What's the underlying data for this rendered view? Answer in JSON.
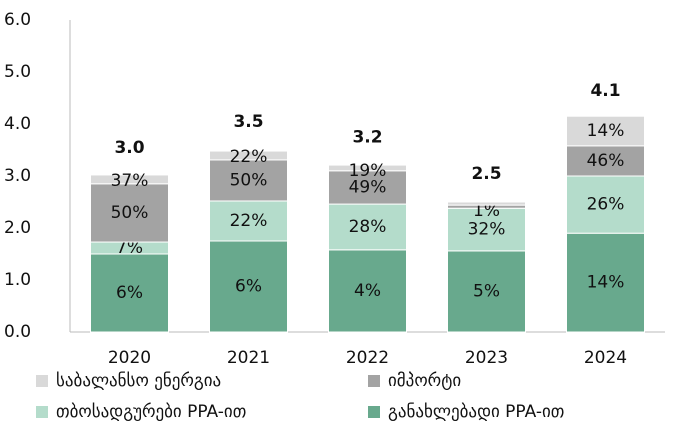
{
  "chart_data": {
    "type": "stacked_bar",
    "categories": [
      "2020",
      "2021",
      "2022",
      "2023",
      "2024"
    ],
    "series": [
      {
        "name": "განახლებადი PPA-ით",
        "color": "#68a98d",
        "values": [
          1.5,
          1.75,
          1.58,
          1.56,
          1.9
        ],
        "labels": [
          "6%",
          "6%",
          "4%",
          "5%",
          "14%"
        ]
      },
      {
        "name": "თბოსადგურები PPA-ით",
        "color": "#b4dccb",
        "values": [
          0.23,
          0.77,
          0.88,
          0.82,
          1.1
        ],
        "labels": [
          "7%",
          "22%",
          "28%",
          "32%",
          "26%"
        ]
      },
      {
        "name": "იმპორტი",
        "color": "#a3a3a3",
        "values": [
          1.12,
          0.79,
          0.64,
          0.06,
          0.58
        ],
        "labels": [
          "50%",
          "50%",
          "49%",
          "1%",
          "46%"
        ]
      },
      {
        "name": "საბალანსო ენერგია",
        "color": "#d9d9d9",
        "values": [
          0.17,
          0.17,
          0.11,
          0.06,
          0.57
        ],
        "labels": [
          "37%",
          "22%",
          "19%",
          null,
          "14%"
        ]
      }
    ],
    "totals": [
      3.0,
      3.5,
      3.2,
      2.5,
      4.1
    ],
    "totals_labels": [
      "3.0",
      "3.5",
      "3.2",
      "2.5",
      "4.1"
    ],
    "ylim": [
      0,
      6
    ],
    "yticks": [
      {
        "value": 0,
        "label": "0.0"
      },
      {
        "value": 1,
        "label": "1.0"
      },
      {
        "value": 2,
        "label": "2.0"
      },
      {
        "value": 3,
        "label": "3.0"
      },
      {
        "value": 4,
        "label": "4.0"
      },
      {
        "value": 5,
        "label": "5.0"
      },
      {
        "value": 6,
        "label": "6.0"
      }
    ]
  }
}
